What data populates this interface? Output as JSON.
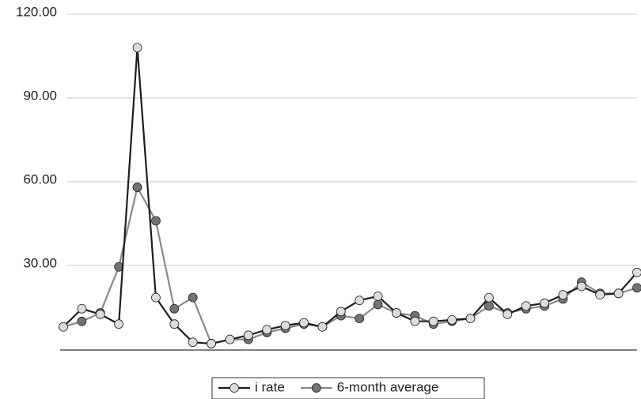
{
  "chart_data": {
    "type": "line",
    "categories": [
      null,
      null,
      null,
      null,
      null,
      null,
      null,
      null,
      null,
      null,
      null,
      null,
      null,
      null,
      null,
      null,
      null,
      null,
      null,
      null,
      null,
      null,
      null,
      null,
      null,
      null,
      null,
      null,
      null,
      null,
      null,
      null
    ],
    "series": [
      {
        "name": "i rate",
        "color": "#1e1e1e",
        "marker_color": "#dcdcdc",
        "values": [
          8,
          14.5,
          12.5,
          9,
          108,
          18.5,
          9,
          2.5,
          2,
          3.5,
          5,
          7,
          8.5,
          9.5,
          8,
          13.5,
          17.5,
          19,
          13,
          10,
          10,
          10.5,
          11,
          18.5,
          12.5,
          15.5,
          16.5,
          19.5,
          22.5,
          19.5,
          20,
          27.5
        ]
      },
      {
        "name": "6-month average",
        "color": "#8a8a8a",
        "marker_color": "#737373",
        "values": [
          8,
          10,
          13,
          29.5,
          58,
          46,
          14.5,
          18.5,
          2,
          3.5,
          3.5,
          6,
          7.5,
          9,
          8,
          12,
          11,
          16,
          13,
          12,
          9,
          10,
          11,
          15.5,
          13,
          14.5,
          15.5,
          18,
          24,
          20,
          20,
          22
        ]
      }
    ],
    "ylim": [
      0,
      120
    ],
    "yticks": [
      {
        "value": 30,
        "label": "30.00"
      },
      {
        "value": 60,
        "label": "60.00"
      },
      {
        "value": 90,
        "label": "90.00"
      },
      {
        "value": 120,
        "label": "120.00"
      }
    ],
    "grid": true,
    "legend": "bottom"
  }
}
